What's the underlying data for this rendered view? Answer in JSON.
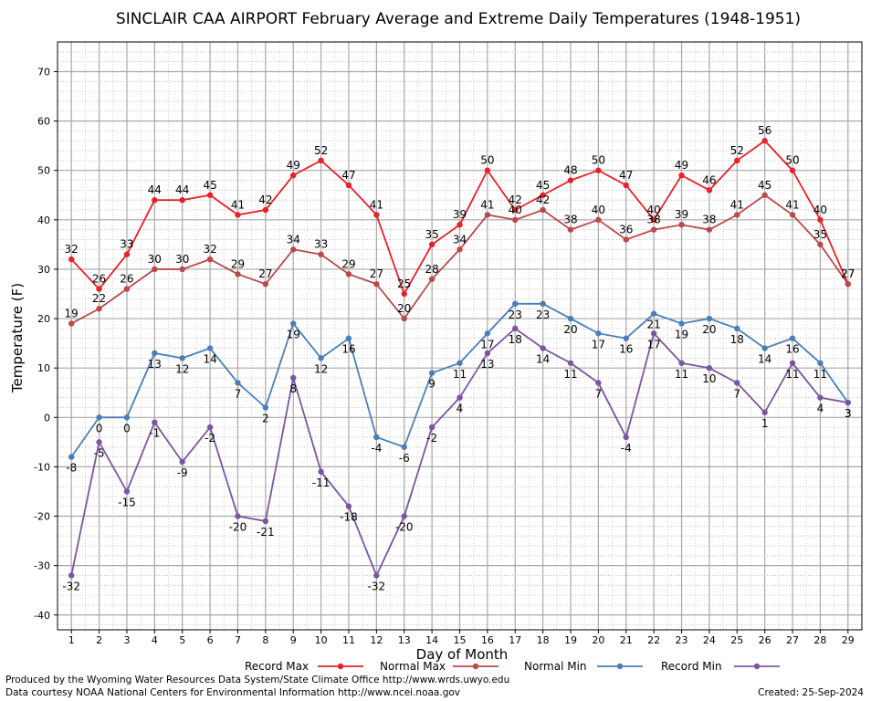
{
  "chart_data": {
    "type": "line",
    "title": "SINCLAIR CAA AIRPORT February Average and Extreme Daily Temperatures (1948-1951)",
    "xlabel": "Day of Month",
    "ylabel": "Temperature (F)",
    "ylim": [
      -43,
      76
    ],
    "y_ticks": [
      -40,
      -30,
      -20,
      -10,
      0,
      10,
      20,
      30,
      40,
      50,
      60,
      70
    ],
    "x": [
      1,
      2,
      3,
      4,
      5,
      6,
      7,
      8,
      9,
      10,
      11,
      12,
      13,
      14,
      15,
      16,
      17,
      18,
      19,
      20,
      21,
      22,
      23,
      24,
      25,
      26,
      27,
      28,
      29
    ],
    "grid": true,
    "legend_position": "bottom",
    "series": [
      {
        "name": "Record Max",
        "color": "#e8202a",
        "values": [
          32,
          26,
          33,
          44,
          44,
          45,
          41,
          42,
          49,
          52,
          47,
          41,
          25,
          35,
          39,
          50,
          42,
          45,
          48,
          50,
          47,
          40,
          49,
          46,
          52,
          56,
          50,
          40,
          27
        ]
      },
      {
        "name": "Normal Max",
        "color": "#b84a4a",
        "values": [
          19,
          22,
          26,
          30,
          30,
          32,
          29,
          27,
          34,
          33,
          29,
          27,
          20,
          28,
          34,
          41,
          40,
          42,
          38,
          40,
          36,
          38,
          39,
          38,
          41,
          45,
          41,
          35,
          27
        ]
      },
      {
        "name": "Normal Min",
        "color": "#4a7fb5",
        "values": [
          -8,
          0,
          0,
          13,
          12,
          14,
          7,
          2,
          19,
          12,
          16,
          -4,
          -6,
          9,
          11,
          17,
          23,
          23,
          20,
          17,
          16,
          21,
          19,
          20,
          18,
          14,
          16,
          11,
          3
        ]
      },
      {
        "name": "Record Min",
        "color": "#7b55a0",
        "values": [
          -32,
          -5,
          -15,
          -1,
          -9,
          -2,
          -20,
          -21,
          8,
          -11,
          -18,
          -32,
          -20,
          -2,
          4,
          13,
          18,
          14,
          11,
          7,
          -4,
          17,
          11,
          10,
          7,
          1,
          11,
          4,
          3
        ]
      }
    ]
  },
  "footer": {
    "credit_line1": "Produced by the Wyoming Water Resources Data System/State Climate Office http://www.wrds.uwyo.edu",
    "credit_line2": "Data courtesy NOAA National Centers for Environmental Information http://www.ncei.noaa.gov",
    "created": "Created:  25-Sep-2024"
  }
}
